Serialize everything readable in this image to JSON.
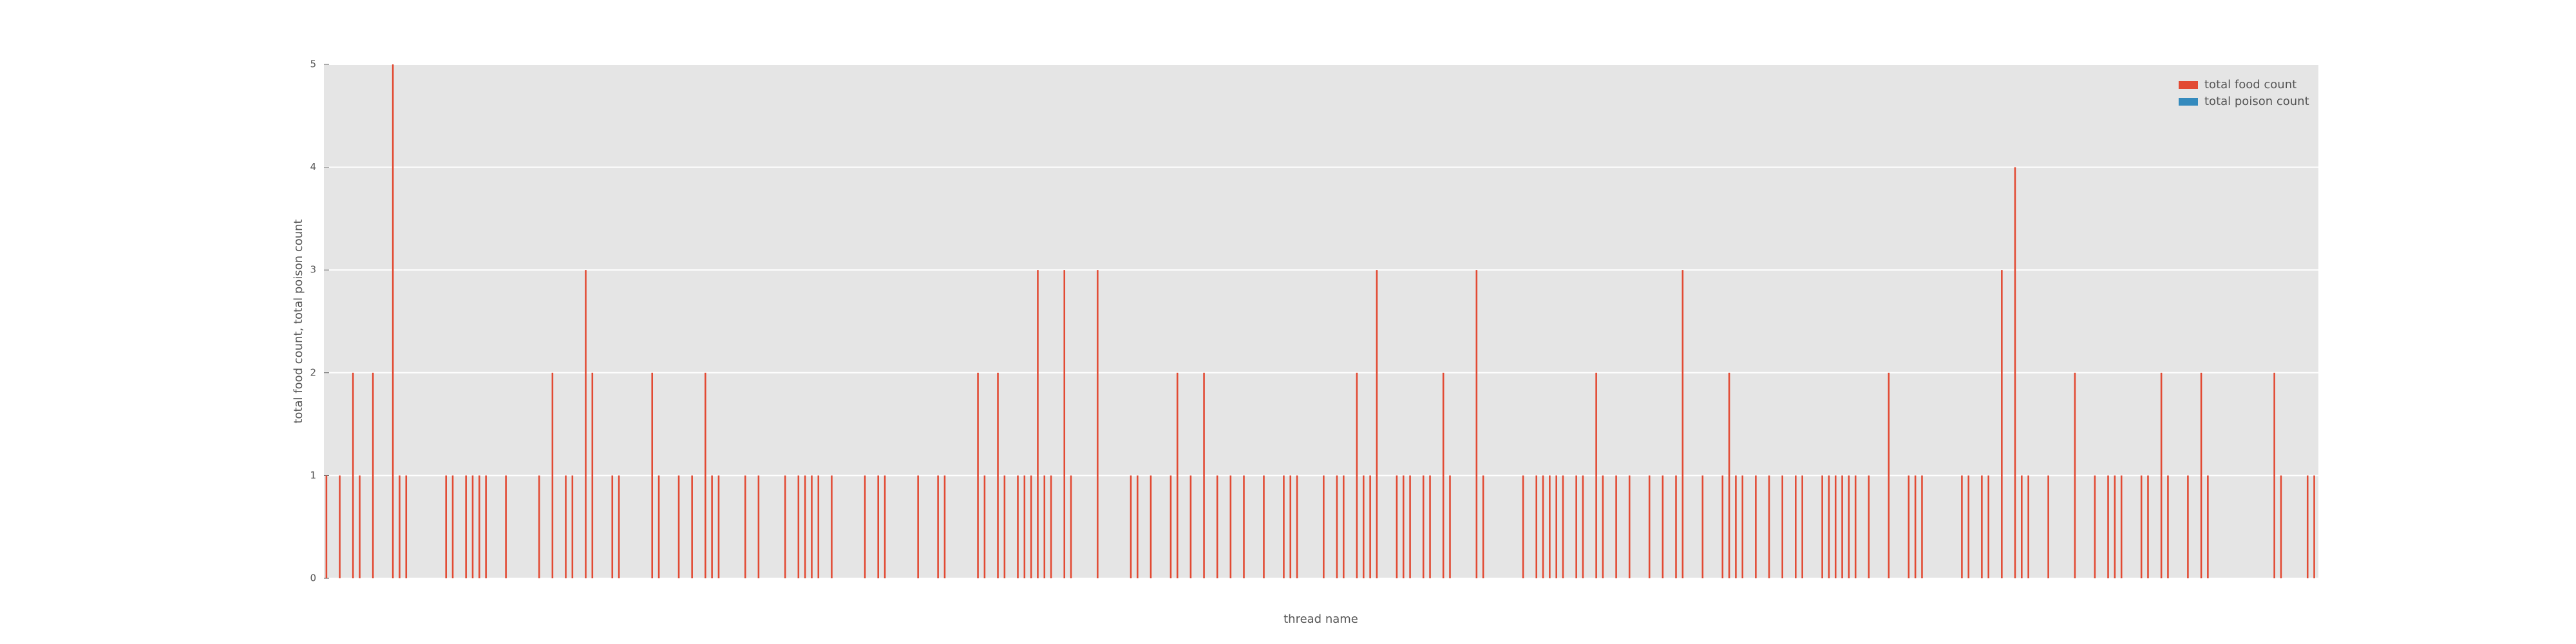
{
  "chart_data": {
    "type": "bar",
    "x_label": "thread name",
    "y_label": "total food count, total poison count",
    "categories": [
      null,
      null,
      null,
      null,
      null,
      null,
      null,
      null,
      null,
      null,
      null,
      null,
      null,
      null,
      null,
      null,
      null,
      null,
      null,
      null,
      null,
      null,
      null,
      null,
      null,
      null,
      null,
      null,
      null,
      null,
      null,
      null,
      null,
      null,
      null,
      null,
      null,
      null,
      null,
      null,
      null,
      null,
      null,
      null,
      null,
      null,
      null,
      null,
      null,
      null,
      null,
      null,
      null,
      null,
      null,
      null,
      null,
      null,
      null,
      null,
      null,
      null,
      null,
      null,
      null,
      null,
      null,
      null,
      null,
      null,
      null,
      null,
      null,
      null,
      null,
      null,
      null,
      null,
      null,
      null,
      null,
      null,
      null,
      null,
      null,
      null,
      null,
      null,
      null,
      null,
      null,
      null,
      null,
      null,
      null,
      null,
      null,
      null,
      null,
      null,
      null,
      null,
      null,
      null,
      null,
      null,
      null,
      null,
      null,
      null,
      null,
      null,
      null,
      null,
      null,
      null,
      null,
      null,
      null,
      null,
      null,
      null,
      null,
      null,
      null,
      null,
      null,
      null,
      null,
      null,
      null,
      null,
      null,
      null,
      null,
      null,
      null,
      null,
      null,
      null,
      null,
      null,
      null,
      null,
      null,
      null,
      null,
      null,
      null,
      null,
      null,
      null,
      null,
      null,
      null,
      null,
      null,
      null,
      null,
      null,
      null,
      null,
      null,
      null,
      null,
      null,
      null,
      null,
      null,
      null,
      null,
      null,
      null,
      null,
      null,
      null,
      null,
      null,
      null,
      null,
      null,
      null,
      null,
      null,
      null,
      null,
      null,
      null,
      null,
      null,
      null,
      null,
      null,
      null,
      null,
      null,
      null,
      null,
      null,
      null,
      null,
      null,
      null,
      null,
      null,
      null,
      null,
      null,
      null,
      null,
      null,
      null,
      null,
      null,
      null,
      null,
      null,
      null,
      null,
      null,
      null,
      null,
      null,
      null,
      null,
      null,
      null,
      null,
      null,
      null,
      null,
      null,
      null,
      null,
      null,
      null,
      null,
      null,
      null,
      null,
      null,
      null,
      null,
      null,
      null,
      null,
      null,
      null,
      null,
      null,
      null,
      null,
      null,
      null,
      null,
      null,
      null,
      null,
      null,
      null,
      null,
      null,
      null,
      null,
      null,
      null,
      null,
      null,
      null,
      null,
      null,
      null,
      null,
      null,
      null,
      null,
      null,
      null,
      null,
      null,
      null,
      null,
      null,
      null,
      null,
      null,
      null,
      null,
      null,
      null,
      null,
      null,
      null,
      null,
      null,
      null,
      null,
      null,
      null,
      null
    ],
    "series": [
      {
        "name": "total food count",
        "color": "#e24a33",
        "values": [
          1,
          0,
          1,
          0,
          2,
          1,
          0,
          2,
          0,
          0,
          5,
          1,
          1,
          0,
          0,
          0,
          0,
          0,
          1,
          1,
          0,
          1,
          1,
          1,
          1,
          0,
          0,
          1,
          0,
          0,
          0,
          0,
          1,
          0,
          2,
          0,
          1,
          1,
          0,
          3,
          2,
          0,
          0,
          1,
          1,
          0,
          0,
          0,
          0,
          2,
          1,
          0,
          0,
          1,
          0,
          1,
          0,
          2,
          1,
          1,
          0,
          0,
          0,
          1,
          0,
          1,
          0,
          0,
          0,
          1,
          0,
          1,
          1,
          1,
          1,
          0,
          1,
          0,
          0,
          0,
          0,
          1,
          0,
          1,
          1,
          0,
          0,
          0,
          0,
          1,
          0,
          0,
          1,
          1,
          0,
          0,
          0,
          0,
          2,
          1,
          0,
          2,
          1,
          0,
          1,
          1,
          1,
          3,
          1,
          1,
          0,
          3,
          1,
          0,
          0,
          0,
          3,
          0,
          0,
          0,
          0,
          1,
          1,
          0,
          1,
          0,
          0,
          1,
          2,
          0,
          1,
          0,
          2,
          0,
          1,
          0,
          1,
          0,
          1,
          0,
          0,
          1,
          0,
          0,
          1,
          1,
          1,
          0,
          0,
          0,
          1,
          0,
          1,
          1,
          0,
          2,
          1,
          1,
          3,
          0,
          0,
          1,
          1,
          1,
          0,
          1,
          1,
          0,
          2,
          1,
          0,
          0,
          0,
          3,
          1,
          0,
          0,
          0,
          0,
          0,
          1,
          0,
          1,
          1,
          1,
          1,
          1,
          0,
          1,
          1,
          0,
          2,
          1,
          0,
          1,
          0,
          1,
          0,
          0,
          1,
          0,
          1,
          0,
          1,
          3,
          0,
          0,
          1,
          0,
          0,
          1,
          2,
          1,
          1,
          0,
          1,
          0,
          1,
          0,
          1,
          0,
          1,
          1,
          0,
          0,
          1,
          1,
          1,
          1,
          1,
          1,
          0,
          1,
          0,
          0,
          2,
          0,
          0,
          1,
          1,
          1,
          0,
          0,
          0,
          0,
          0,
          1,
          1,
          0,
          1,
          1,
          0,
          3,
          0,
          4,
          1,
          1,
          0,
          0,
          1,
          0,
          0,
          0,
          2,
          0,
          0,
          1,
          0,
          1,
          1,
          1,
          0,
          0,
          1,
          1,
          0,
          2,
          1,
          0,
          0,
          1,
          0,
          2,
          1,
          0,
          0,
          0,
          0,
          0,
          0,
          0,
          0,
          0,
          2,
          1,
          0,
          0,
          0,
          1,
          1
        ]
      },
      {
        "name": "total poison count",
        "color": "#348abd",
        "values": [
          0,
          0,
          0,
          0,
          0,
          0,
          0,
          0,
          0,
          0,
          0,
          0,
          0,
          0,
          0,
          0,
          0,
          0,
          0,
          0,
          0,
          0,
          0,
          0,
          0,
          0,
          0,
          0,
          0,
          0,
          0,
          0,
          0,
          0,
          0,
          0,
          0,
          0,
          0,
          0,
          0,
          0,
          0,
          0,
          0,
          0,
          0,
          0,
          0,
          0,
          0,
          0,
          0,
          0,
          0,
          0,
          0,
          0,
          0,
          0,
          0,
          0,
          0,
          0,
          0,
          0,
          0,
          0,
          0,
          0,
          0,
          0,
          0,
          0,
          0,
          0,
          0,
          0,
          0,
          0,
          0,
          0,
          0,
          0,
          0,
          0,
          0,
          0,
          0,
          0,
          0,
          0,
          0,
          0,
          0,
          0,
          0,
          0,
          0,
          0,
          0,
          0,
          0,
          0,
          0,
          0,
          0,
          0,
          0,
          0,
          0,
          0,
          0,
          0,
          0,
          0,
          0,
          0,
          0,
          0,
          0,
          0,
          0,
          0,
          0,
          0,
          0,
          0,
          0,
          0,
          0,
          0,
          0,
          0,
          0,
          0,
          0,
          0,
          0,
          0,
          0,
          0,
          0,
          0,
          0,
          0,
          0,
          0,
          0,
          0,
          0,
          0,
          0,
          0,
          0,
          0,
          0,
          0,
          0,
          0,
          0,
          0,
          0,
          0,
          0,
          0,
          0,
          0,
          0,
          0,
          0,
          0,
          0,
          0,
          0,
          0,
          0,
          0,
          0,
          0,
          0,
          0,
          0,
          0,
          0,
          0,
          0,
          0,
          0,
          0,
          0,
          0,
          0,
          0,
          0,
          0,
          0,
          0,
          0,
          0,
          0,
          0,
          0,
          0,
          0,
          0,
          0,
          0,
          0,
          0,
          0,
          0,
          0,
          0,
          0,
          0,
          0,
          0,
          0,
          0,
          0,
          0,
          0,
          0,
          0,
          0,
          0,
          0,
          0,
          0,
          0,
          0,
          0,
          0,
          0,
          0,
          0,
          0,
          0,
          0,
          0,
          0,
          0,
          0,
          0,
          0,
          0,
          0,
          0,
          0,
          0,
          0,
          0,
          0,
          0,
          0,
          0,
          0,
          0,
          0,
          0,
          0,
          0,
          0,
          0,
          0,
          0,
          0,
          0,
          0,
          0,
          0,
          0,
          0,
          0,
          0,
          0,
          0,
          0,
          0,
          0,
          0,
          0,
          0,
          0,
          0,
          0,
          0,
          0,
          0,
          0,
          0,
          0,
          0,
          0,
          0,
          0,
          0,
          0,
          0
        ]
      }
    ],
    "ylim": [
      0,
      5
    ],
    "yticks": [
      0,
      1,
      2,
      3,
      4,
      5
    ],
    "grid": true,
    "legend": "upper right"
  }
}
